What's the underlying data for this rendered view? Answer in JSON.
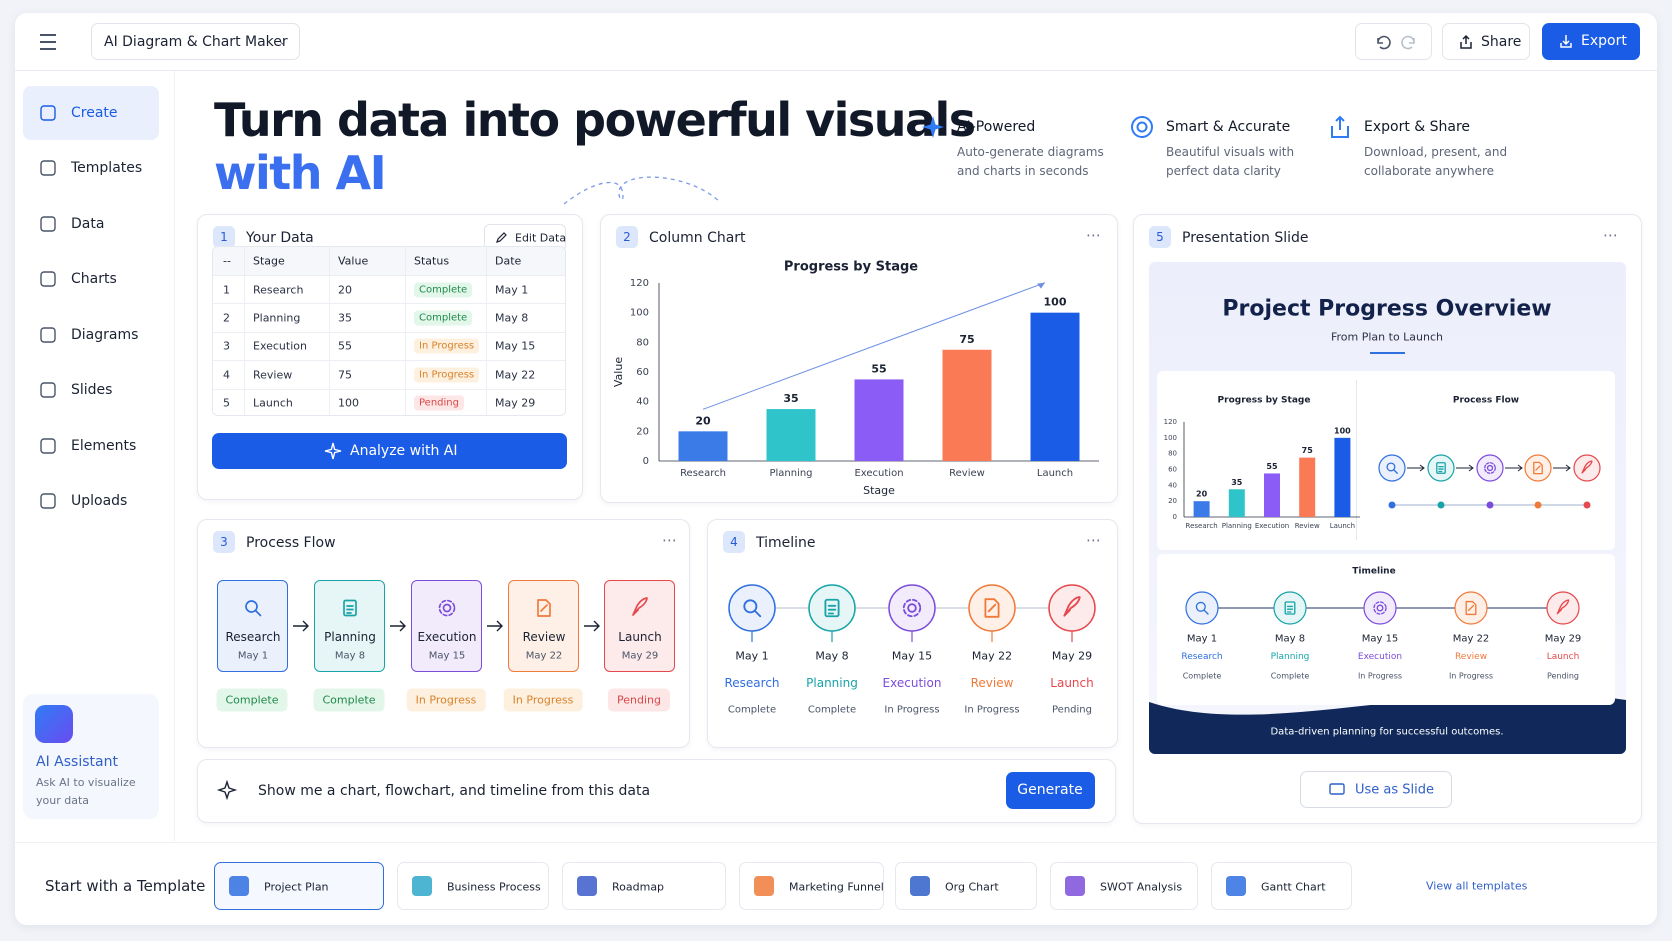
{
  "app": {
    "title": "AI Diagram & Chart Maker",
    "share": "Share",
    "export": "Export"
  },
  "sidebar": {
    "items": [
      "Create",
      "Templates",
      "Data",
      "Charts",
      "Diagrams",
      "Slides",
      "Elements",
      "Uploads"
    ],
    "assistant": {
      "title": "AI Assistant",
      "text": "Ask AI to visualize your data"
    }
  },
  "hero": {
    "title": "Turn data into powerful visuals",
    "highlight": "with AI",
    "features": [
      {
        "title": "AI-Powered",
        "text": "Auto-generate diagrams and charts in seconds"
      },
      {
        "title": "Smart & Accurate",
        "text": "Beautiful visuals with perfect data clarity"
      },
      {
        "title": "Export & Share",
        "text": "Download, present, and collaborate anywhere"
      }
    ]
  },
  "data_panel": {
    "step": 1,
    "title": "Your Data",
    "edit": "Edit Data",
    "columns": [
      "--",
      "Stage",
      "Value",
      "Status",
      "Date"
    ],
    "rows": [
      [
        1,
        "Research",
        20,
        "Complete",
        "May 1"
      ],
      [
        2,
        "Planning",
        35,
        "Complete",
        "May 8"
      ],
      [
        3,
        "Execution",
        55,
        "In Progress",
        "May 15"
      ],
      [
        4,
        "Review",
        75,
        "In Progress",
        "May 22"
      ],
      [
        5,
        "Launch",
        100,
        "Pending",
        "May 29"
      ]
    ],
    "button": "Analyze with AI"
  },
  "chart_panel": {
    "step": 2,
    "title": "Column Chart"
  },
  "chart_data": [
    {
      "type": "bar",
      "title": "Progress by Stage",
      "x_label": "Stage",
      "y_label": "Value",
      "categories": [
        "Research",
        "Planning",
        "Execution",
        "Review",
        "Launch"
      ],
      "values": [
        20,
        35,
        55,
        75,
        100
      ],
      "colors": [
        "#3b7be8",
        "#2ec4c9",
        "#8b5cf6",
        "#fa7a55",
        "#1a5ce6"
      ],
      "ylim": [
        0,
        120
      ],
      "yticks": [
        0,
        20,
        40,
        60,
        80,
        100,
        120
      ],
      "grid": false
    },
    {
      "type": "bar",
      "title": "Progress by Stage",
      "categories": [
        "Research",
        "Planning",
        "Execution",
        "Review",
        "Launch"
      ],
      "values": [
        20,
        35,
        55,
        75,
        100
      ],
      "colors": [
        "#3b7be8",
        "#2ec4c9",
        "#8b5cf6",
        "#fa7a55",
        "#1a5ce6"
      ],
      "ylim": [
        0,
        120
      ],
      "yticks": [
        0,
        20,
        40,
        60,
        80,
        100,
        120
      ],
      "grid": false
    }
  ],
  "process_panel": {
    "step": 3,
    "title": "Process Flow",
    "steps": [
      {
        "name": "Research",
        "date": "May 1",
        "status": "Complete"
      },
      {
        "name": "Planning",
        "date": "May 8",
        "status": "Complete"
      },
      {
        "name": "Execution",
        "date": "May 15",
        "status": "In Progress"
      },
      {
        "name": "Review",
        "date": "May 22",
        "status": "In Progress"
      },
      {
        "name": "Launch",
        "date": "May 29",
        "status": "Pending"
      }
    ]
  },
  "timeline_panel": {
    "step": 4,
    "title": "Timeline",
    "items": [
      {
        "date": "May 1",
        "name": "Research",
        "status": "Complete"
      },
      {
        "date": "May 8",
        "name": "Planning",
        "status": "Complete"
      },
      {
        "date": "May 15",
        "name": "Execution",
        "status": "In Progress"
      },
      {
        "date": "May 22",
        "name": "Review",
        "status": "In Progress"
      },
      {
        "date": "May 29",
        "name": "Launch",
        "status": "Pending"
      }
    ]
  },
  "slide_panel": {
    "step": 5,
    "title": "Presentation Slide",
    "slide": {
      "title": "Project Progress Overview",
      "subtitle": "From Plan to Launch",
      "flow_title": "Process Flow",
      "timeline_title": "Timeline",
      "timeline": [
        {
          "date": "May 1",
          "name": "Research",
          "status": "Complete"
        },
        {
          "date": "May 8",
          "name": "Planning",
          "status": "Complete"
        },
        {
          "date": "May 15",
          "name": "Execution",
          "status": "In Progress"
        },
        {
          "date": "May 22",
          "name": "Review",
          "status": "In Progress"
        },
        {
          "date": "May 29",
          "name": "Launch",
          "status": "Pending"
        }
      ],
      "footer": "Data-driven planning for successful outcomes."
    },
    "button": "Use as Slide"
  },
  "prompt": {
    "text": "Show me a chart, flowchart, and timeline from this data",
    "button": "Generate"
  },
  "templates": {
    "label": "Start with a Template",
    "items": [
      "Project Plan",
      "Business Process",
      "Roadmap",
      "Marketing Funnel",
      "Org Chart",
      "SWOT Analysis",
      "Gantt Chart"
    ],
    "view_all": "View all templates"
  }
}
